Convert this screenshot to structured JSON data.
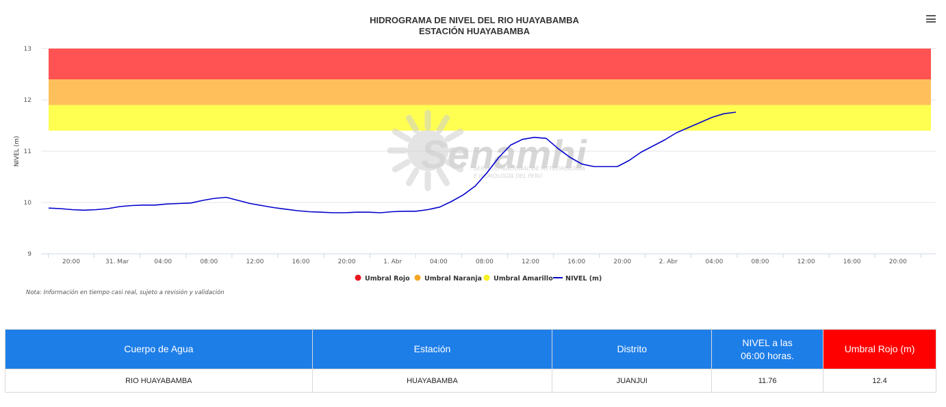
{
  "chart_data": {
    "type": "line",
    "title": "HIDROGRAMA DE NIVEL DEL RIO HUAYABAMBA",
    "subtitle": "ESTACIÓN HUAYABAMBA",
    "ylabel": "NIVEL (m)",
    "ylim": [
      9,
      13
    ],
    "yticks": [
      "9",
      "10",
      "11",
      "12",
      "13"
    ],
    "xticks": [
      "20:00",
      "31. Mar",
      "04:00",
      "08:00",
      "12:00",
      "16:00",
      "20:00",
      "1. Abr",
      "04:00",
      "08:00",
      "12:00",
      "16:00",
      "20:00",
      "2. Abr",
      "04:00",
      "08:00",
      "12:00",
      "16:00",
      "20:00"
    ],
    "bands": [
      {
        "name": "Umbral Rojo",
        "from": 12.4,
        "to": 13.0,
        "color": "#ff5252"
      },
      {
        "name": "Umbral Naranja",
        "from": 11.9,
        "to": 12.4,
        "color": "#ffc05c"
      },
      {
        "name": "Umbral Amarillo",
        "from": 11.4,
        "to": 11.9,
        "color": "#ffff52"
      }
    ],
    "series": [
      {
        "name": "NIVEL (m)",
        "color": "#0000cc",
        "values": [
          9.89,
          9.88,
          9.86,
          9.85,
          9.86,
          9.88,
          9.92,
          9.94,
          9.95,
          9.95,
          9.97,
          9.98,
          9.99,
          10.04,
          10.08,
          10.1,
          10.04,
          9.98,
          9.94,
          9.9,
          9.87,
          9.84,
          9.82,
          9.81,
          9.8,
          9.8,
          9.81,
          9.81,
          9.8,
          9.82,
          9.83,
          9.83,
          9.86,
          9.91,
          10.02,
          10.15,
          10.32,
          10.58,
          10.88,
          11.12,
          11.23,
          11.27,
          11.25,
          11.05,
          10.88,
          10.75,
          10.7,
          10.7,
          10.7,
          10.82,
          10.98,
          11.1,
          11.22,
          11.36,
          11.46,
          11.56,
          11.66,
          11.73,
          11.76
        ]
      }
    ],
    "legend": {
      "position": "bottom-center"
    },
    "note": "Nota: Información en tiempo casi real, sujeto a revisión y validación",
    "watermark": {
      "text": "Senamhi",
      "subtext_1": "SERVICIO NACIONAL DE METEOROLOGÍA",
      "subtext_2": "E HIDROLOGÍA DEL PERÚ"
    }
  },
  "table": {
    "headers": [
      "Cuerpo de Agua",
      "Estación",
      "Distrito",
      "NIVEL a las 06:00 horas.",
      "Umbral Rojo (m)"
    ],
    "header_colors": [
      "#1e7ee8",
      "#1e7ee8",
      "#1e7ee8",
      "#1e7ee8",
      "#ff0000"
    ],
    "row": [
      "RIO HUAYABAMBA",
      "HUAYABAMBA",
      "JUANJUI",
      "11.76",
      "12.4"
    ]
  }
}
